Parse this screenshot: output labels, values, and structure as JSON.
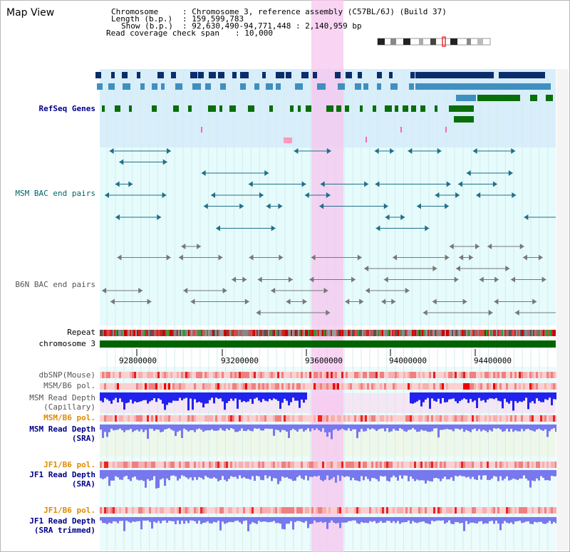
{
  "app": {
    "title": "Map View"
  },
  "header": {
    "chromosome_key": "Chromosome",
    "chromosome_val": ": Chromosome 3, reference assembly (C57BL/6J) (Build 37)",
    "length_key": "Length (b.p.)",
    "length_val": ": 159,599,783",
    "show_key": "Show (b.p.)",
    "show_val": ": 92,630,490-94,771,448 : 2,140,959 bp",
    "coverage_key": "Read coverage check span",
    "coverage_val": ": 10,000"
  },
  "tracks": {
    "refseq": "RefSeq Genes",
    "msm_bac": "MSM BAC end pairs",
    "b6n_bac": "B6N BAC end pairs",
    "repeat": "Repeat",
    "chromosome": "chromosome 3",
    "dbsnp": "dbSNP(Mouse)",
    "msm_b6_pol_1": "MSM/B6 pol.",
    "msm_depth_cap_1": "MSM Read Depth",
    "msm_depth_cap_2": "(Capillary)",
    "msm_b6_pol_2": "MSM/B6 pol.",
    "msm_depth_sra_1": "MSM Read Depth",
    "msm_depth_sra_2": "(SRA)",
    "jf1_b6_pol_1": "JF1/B6 pol.",
    "jf1_depth_sra_1": "JF1 Read Depth",
    "jf1_depth_sra_2": "(SRA)",
    "jf1_b6_pol_2": "JF1/B6 pol.",
    "jf1_depth_trim_1": "JF1 Read Depth",
    "jf1_depth_trim_2": "(SRA trimmed)"
  },
  "axis": {
    "ticks": [
      "92800000",
      "93200000",
      "93600000",
      "94000000",
      "94400000"
    ]
  },
  "colors": {
    "gene_dark": "#0b2d6b",
    "gene_mid": "#3f8fbf",
    "gene_green": "#0a6e0a",
    "highlight": "#f7c6ef",
    "chromosome_bar": "#006400",
    "refseq_bg": "#d8eefa",
    "depth_blue": "#2222ee",
    "depth_light": "#7777ee"
  }
}
